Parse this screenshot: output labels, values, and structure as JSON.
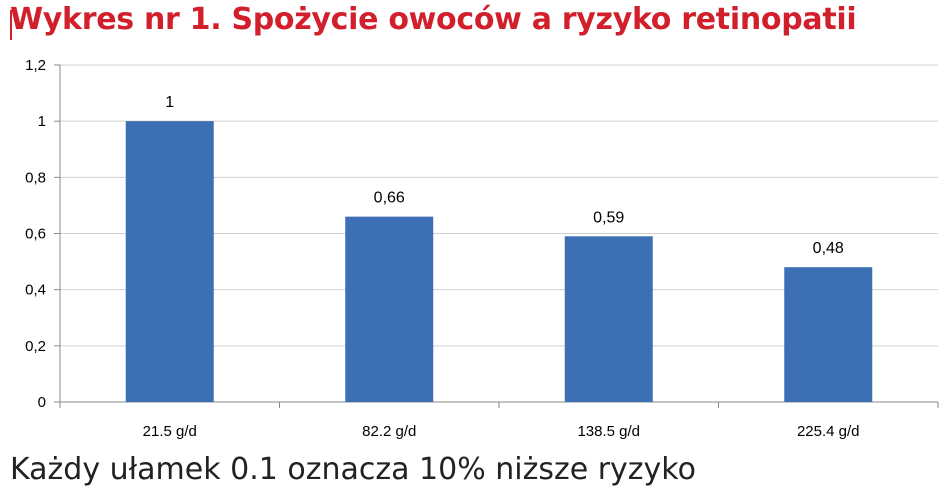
{
  "title": "Wykres nr 1. Spożycie owoców a ryzyko retinopatii",
  "footer": "Każdy ułamek 0.1 oznacza 10% niższe ryzyko",
  "colors": {
    "title": "#d11f2b",
    "bar": "#3d6fb4",
    "grid": "#d0d0d0"
  },
  "chart_data": {
    "type": "bar",
    "categories": [
      "21.5 g/d",
      "82.2 g/d",
      "138.5 g/d",
      "225.4 g/d"
    ],
    "values": [
      1,
      0.66,
      0.59,
      0.48
    ],
    "value_labels": [
      "1",
      "0,66",
      "0,59",
      "0,48"
    ],
    "ylim": [
      0,
      1.2
    ],
    "yticks": [
      0,
      0.2,
      0.4,
      0.6,
      0.8,
      1,
      1.2
    ],
    "ytick_labels": [
      "0",
      "0,2",
      "0,4",
      "0,6",
      "0,8",
      "1",
      "1,2"
    ],
    "grid": true,
    "legend": "none"
  }
}
